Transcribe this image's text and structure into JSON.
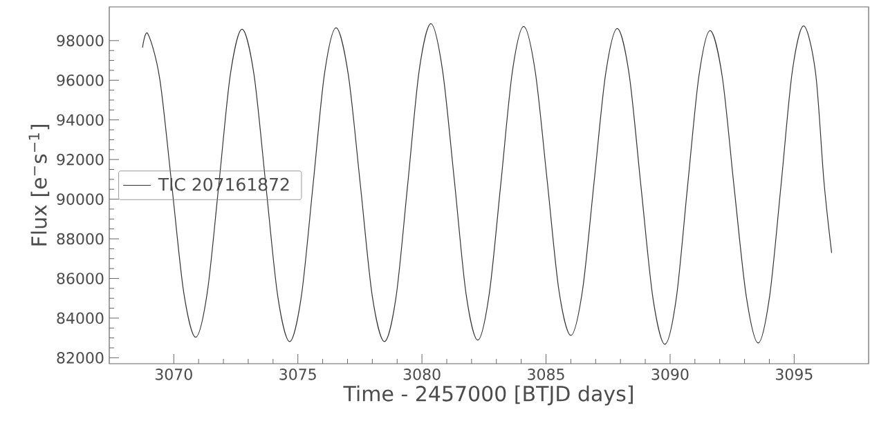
{
  "chart_data": {
    "type": "line",
    "xlabel": "Time - 2457000 [BTJD days]",
    "ylabel": "Flux [e$^{−}$s$^{−1}$]",
    "xlim": [
      3067.4,
      3098.0
    ],
    "ylim": [
      81700,
      99700
    ],
    "xticks": [
      3070,
      3075,
      3080,
      3085,
      3090,
      3095
    ],
    "yticks": [
      82000,
      84000,
      86000,
      88000,
      90000,
      92000,
      94000,
      96000,
      98000
    ],
    "grid": false,
    "legend": "left",
    "marker": "none",
    "line_style": "solid",
    "x": [
      3068.74,
      3068.95,
      3069.43,
      3069.92,
      3070.4,
      3070.88,
      3071.35,
      3071.82,
      3072.28,
      3072.75,
      3073.23,
      3073.71,
      3074.19,
      3074.67,
      3075.14,
      3075.61,
      3076.07,
      3076.54,
      3077.03,
      3077.52,
      3078.0,
      3078.49,
      3078.96,
      3079.43,
      3079.89,
      3080.36,
      3080.83,
      3081.31,
      3081.78,
      3082.25,
      3082.71,
      3083.18,
      3083.64,
      3084.1,
      3084.57,
      3085.05,
      3085.52,
      3086.0,
      3086.47,
      3086.94,
      3087.4,
      3087.87,
      3088.35,
      3088.83,
      3089.31,
      3089.79,
      3090.25,
      3090.7,
      3091.16,
      3091.61,
      3092.1,
      3092.58,
      3093.07,
      3093.55,
      3094.01,
      3094.47,
      3094.92,
      3095.38,
      3095.86,
      3096.2,
      3096.51
    ],
    "series": [
      {
        "name": "TIC 207161872",
        "color": "#333333",
        "values": [
          97650,
          98350,
          96100,
          90700,
          85300,
          83040,
          85300,
          90800,
          96300,
          98570,
          96300,
          90700,
          85100,
          82820,
          85100,
          90700,
          96300,
          98640,
          96300,
          90700,
          85100,
          82820,
          85100,
          90800,
          96500,
          98850,
          96500,
          90900,
          85200,
          82890,
          85200,
          90800,
          96400,
          98710,
          96400,
          90900,
          85400,
          83130,
          85400,
          90900,
          96300,
          98610,
          96300,
          90600,
          85000,
          82680,
          85000,
          90600,
          96200,
          98500,
          96200,
          90600,
          85100,
          82750,
          85100,
          90700,
          96400,
          98740,
          96400,
          90900,
          87290
        ]
      }
    ]
  }
}
